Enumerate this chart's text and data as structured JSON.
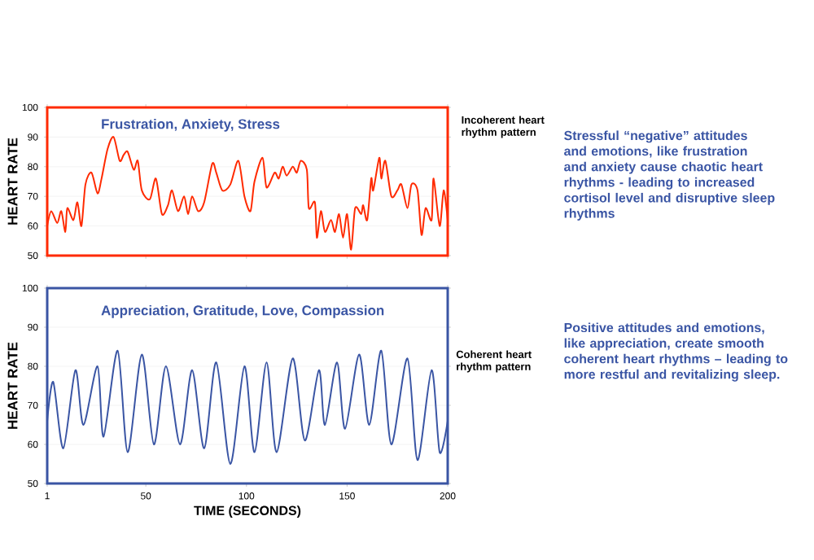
{
  "chart_data": [
    {
      "type": "line",
      "title": "Frustration, Anxiety, Stress",
      "ylabel": "HEART RATE",
      "xlim": [
        1,
        200
      ],
      "xticks": [
        1,
        50,
        100,
        150,
        200
      ],
      "ylim": [
        50,
        100
      ],
      "yticks": [
        50,
        60,
        70,
        80,
        90,
        100
      ],
      "tick_labels": "y",
      "grid": "y",
      "line_style": "solid",
      "annotations": [
        "Incoherent heart rhythm pattern",
        "Stressful “negative” attitudes and emotions, like frustration and anxiety cause chaotic heart rhythms - leading to increased cortisol level and disruptive sleep rhythms"
      ],
      "series": [
        {
          "color": "#ff2a00",
          "x": [
            1,
            3,
            6,
            8,
            10,
            11,
            14,
            16,
            18,
            20,
            23,
            26,
            28,
            31,
            34,
            37,
            39,
            41,
            44,
            46,
            48,
            52,
            55,
            58,
            61,
            63,
            66,
            69,
            71,
            73,
            76,
            79,
            83,
            85,
            88,
            92,
            96,
            99,
            102,
            104,
            108,
            110,
            114,
            116,
            118,
            120,
            123,
            125,
            127,
            130,
            131,
            134,
            135,
            137,
            139,
            142,
            144,
            146,
            148,
            150,
            152,
            154,
            157,
            158,
            160,
            162,
            163,
            166,
            167,
            169,
            172,
            175,
            177,
            180,
            182,
            185,
            187,
            189,
            192,
            193,
            196,
            198,
            200
          ],
          "values": [
            60,
            65,
            61,
            65,
            58,
            66,
            62,
            68,
            60,
            74,
            78,
            71,
            76,
            86,
            90,
            82,
            84,
            85,
            79,
            82,
            72,
            69,
            76,
            64,
            67,
            72,
            65,
            70,
            64,
            70,
            65,
            68,
            81,
            78,
            72,
            74,
            82,
            70,
            65,
            75,
            83,
            73,
            78,
            76,
            80,
            77,
            80,
            78,
            82,
            79,
            66,
            68,
            56,
            65,
            58,
            62,
            58,
            64,
            56,
            64,
            52,
            66,
            64,
            67,
            62,
            76,
            72,
            83,
            76,
            82,
            70,
            72,
            74,
            66,
            74,
            72,
            57,
            66,
            62,
            76,
            60,
            72,
            62
          ]
        }
      ]
    },
    {
      "type": "line",
      "title": "Appreciation, Gratitude, Love, Compassion",
      "xlabel": "TIME (SECONDS)",
      "ylabel": "HEART RATE",
      "xlim": [
        1,
        200
      ],
      "xticks": [
        1,
        50,
        100,
        150,
        200
      ],
      "ylim": [
        50,
        100
      ],
      "yticks": [
        50,
        60,
        70,
        80,
        90,
        100
      ],
      "grid": "y",
      "line_style": "solid",
      "annotations": [
        "Coherent heart rhythm pattern",
        "Positive attitudes and emotions, like appreciation, create smooth coherent heart rhythms – leading to more restful and revitalizing sleep."
      ],
      "series": [
        {
          "color": "#3a55a4",
          "x": [
            1,
            4,
            9,
            15,
            19,
            26,
            29,
            36,
            41,
            48,
            54,
            60,
            67,
            73,
            79,
            85,
            92,
            99,
            104,
            110,
            115,
            123,
            129,
            136,
            139,
            145,
            149,
            156,
            161,
            167,
            172,
            180,
            185,
            192,
            196,
            200
          ],
          "values": [
            66,
            76,
            59,
            79,
            65,
            80,
            62,
            84,
            58,
            83,
            60,
            80,
            60,
            79,
            59,
            81,
            55,
            80,
            58,
            81,
            58,
            82,
            61,
            79,
            65,
            81,
            64,
            83,
            65,
            84,
            60,
            82,
            56,
            79,
            58,
            66
          ]
        }
      ]
    }
  ]
}
